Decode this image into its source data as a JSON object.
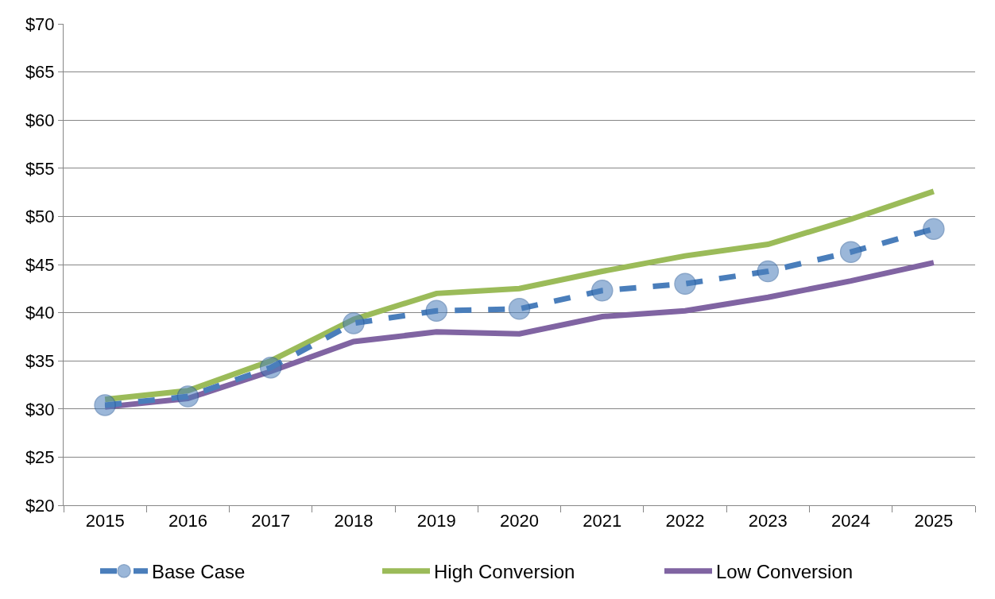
{
  "chart_data": {
    "type": "line",
    "categories": [
      "2015",
      "2016",
      "2017",
      "2018",
      "2019",
      "2020",
      "2021",
      "2022",
      "2023",
      "2024",
      "2025"
    ],
    "series": [
      {
        "name": "Base Case",
        "color": "#4a7ebb",
        "line_style": "dashed",
        "marker": "circle",
        "values": [
          30.4,
          31.3,
          34.3,
          38.9,
          40.2,
          40.4,
          42.3,
          43.0,
          44.3,
          46.3,
          48.7
        ]
      },
      {
        "name": "High Conversion",
        "color": "#9bbb59",
        "line_style": "solid",
        "marker": "none",
        "values": [
          31.0,
          31.9,
          35.0,
          39.3,
          42.0,
          42.5,
          44.3,
          45.9,
          47.1,
          49.7,
          52.6
        ]
      },
      {
        "name": "Low Conversion",
        "color": "#8064a2",
        "line_style": "solid",
        "marker": "none",
        "values": [
          30.2,
          31.1,
          33.9,
          37.0,
          38.0,
          37.8,
          39.6,
          40.2,
          41.6,
          43.3,
          45.2
        ]
      }
    ],
    "ylim": [
      20,
      70
    ],
    "yticks": [
      {
        "value": 20,
        "label": "$20"
      },
      {
        "value": 25,
        "label": "$25"
      },
      {
        "value": 30,
        "label": "$30"
      },
      {
        "value": 35,
        "label": "$35"
      },
      {
        "value": 40,
        "label": "$40"
      },
      {
        "value": 45,
        "label": "$45"
      },
      {
        "value": 50,
        "label": "$50"
      },
      {
        "value": 55,
        "label": "$55"
      },
      {
        "value": 60,
        "label": "$60"
      },
      {
        "value": 65,
        "label": "$65"
      },
      {
        "value": 70,
        "label": "$70"
      }
    ],
    "grid": "y",
    "legend": "bottom"
  }
}
